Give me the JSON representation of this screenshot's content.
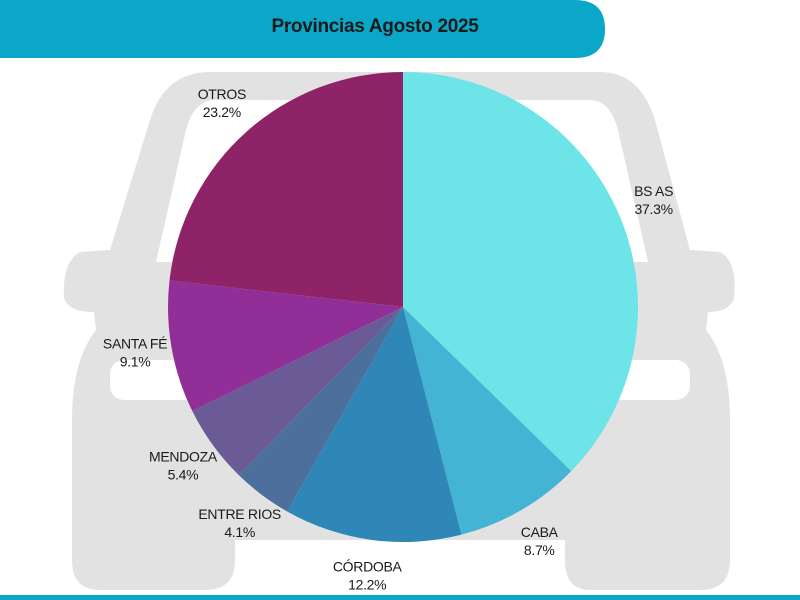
{
  "chart_data": {
    "type": "pie",
    "title": "Provincias Agosto 2025",
    "categories": [
      "BS AS",
      "CABA",
      "CÓRDOBA",
      "ENTRE RIOS",
      "MENDOZA",
      "SANTA FÉ",
      "OTROS"
    ],
    "values": [
      37.3,
      8.7,
      12.2,
      4.1,
      5.4,
      9.1,
      23.2
    ],
    "value_labels": [
      "37.3%",
      "8.7%",
      "12.2%",
      "4.1%",
      "5.4%",
      "9.1%",
      "23.2%"
    ],
    "colors": [
      "#6ce4e8",
      "#44b4d4",
      "#2f87b8",
      "#4d6f9c",
      "#6a5a96",
      "#922e98",
      "#8f2368"
    ]
  }
}
